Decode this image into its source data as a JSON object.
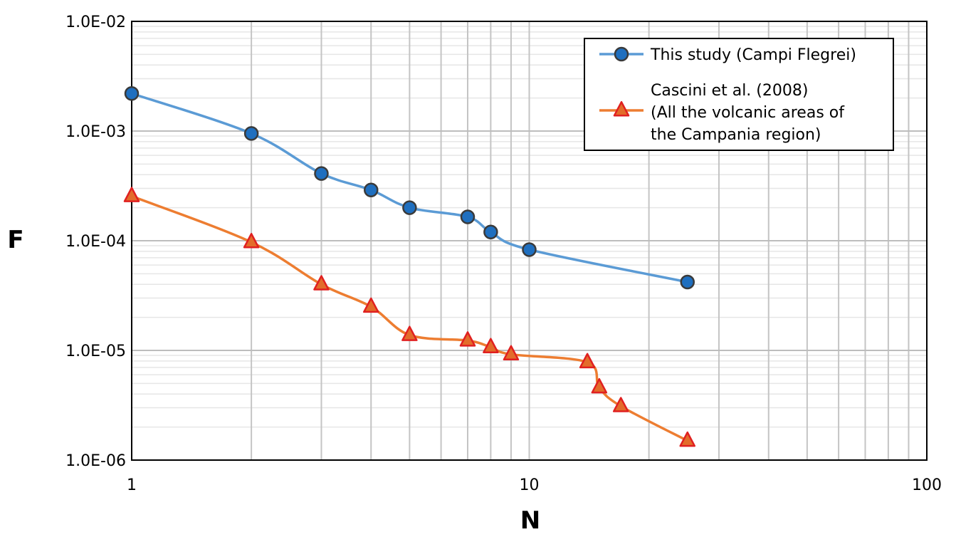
{
  "chart_data": {
    "type": "line",
    "xlabel": "N",
    "ylabel": "F",
    "x_scale": "log",
    "y_scale": "log",
    "xlim": [
      1,
      100
    ],
    "ylim": [
      1e-06,
      0.01
    ],
    "x_ticks": [
      {
        "value": 1,
        "label": "1"
      },
      {
        "value": 10,
        "label": "10"
      },
      {
        "value": 100,
        "label": "100"
      }
    ],
    "y_ticks": [
      {
        "value": 0.01,
        "label": "1.0E-02"
      },
      {
        "value": 0.001,
        "label": "1.0E-03"
      },
      {
        "value": 0.0001,
        "label": "1.0E-04"
      },
      {
        "value": 1e-05,
        "label": "1.0E-05"
      },
      {
        "value": 1e-06,
        "label": "1.0E-06"
      }
    ],
    "grid": true,
    "legend_position": "top-right",
    "series": [
      {
        "name": "This study (Campi Flegrei)",
        "marker": "circle",
        "line_color": "#5b9bd5",
        "marker_fill": "#1f6fbf",
        "marker_stroke": "#3a3a3a",
        "points": [
          {
            "x": 1,
            "y": 0.0022
          },
          {
            "x": 2,
            "y": 0.00095
          },
          {
            "x": 3,
            "y": 0.00041
          },
          {
            "x": 4,
            "y": 0.00029
          },
          {
            "x": 5,
            "y": 0.0002
          },
          {
            "x": 7,
            "y": 0.000165
          },
          {
            "x": 8,
            "y": 0.00012
          },
          {
            "x": 10,
            "y": 8.3e-05
          },
          {
            "x": 25,
            "y": 4.2e-05
          }
        ]
      },
      {
        "name": "Cascini et al. (2008)\n(All the volcanic areas of\nthe Campania region)",
        "name_lines": [
          "Cascini et al. (2008)",
          "(All the volcanic areas of",
          "the Campania region)"
        ],
        "marker": "triangle",
        "line_color": "#ed7d31",
        "marker_fill": "#e36c2a",
        "marker_stroke": "#e02020",
        "points": [
          {
            "x": 1,
            "y": 0.000255
          },
          {
            "x": 2,
            "y": 9.7e-05
          },
          {
            "x": 3,
            "y": 4e-05
          },
          {
            "x": 4,
            "y": 2.5e-05
          },
          {
            "x": 5,
            "y": 1.38e-05
          },
          {
            "x": 7,
            "y": 1.23e-05
          },
          {
            "x": 8,
            "y": 1.07e-05
          },
          {
            "x": 9,
            "y": 9.2e-06
          },
          {
            "x": 14,
            "y": 7.8e-06
          },
          {
            "x": 15,
            "y": 4.6e-06
          },
          {
            "x": 17,
            "y": 3.1e-06
          },
          {
            "x": 25,
            "y": 1.5e-06
          }
        ]
      }
    ]
  }
}
